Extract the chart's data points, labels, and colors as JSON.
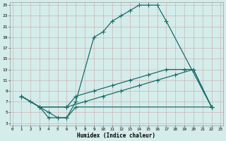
{
  "xlabel": "Humidex (Indice chaleur)",
  "bg_color": "#d4ecea",
  "line_color": "#1a6b6b",
  "grid_color": "#b8d8d8",
  "xlim": [
    -0.3,
    23.3
  ],
  "ylim": [
    2.5,
    25.5
  ],
  "xticks": [
    0,
    1,
    2,
    3,
    4,
    5,
    6,
    7,
    8,
    9,
    10,
    11,
    12,
    13,
    14,
    15,
    16,
    17,
    18,
    19,
    20,
    21,
    22,
    23
  ],
  "yticks": [
    3,
    5,
    7,
    9,
    11,
    13,
    15,
    17,
    19,
    21,
    23,
    25
  ],
  "curve1_x": [
    1,
    2,
    3,
    4,
    5,
    6,
    7,
    9,
    10,
    11,
    12,
    13,
    14,
    15,
    16,
    17,
    22
  ],
  "curve1_y": [
    8,
    7,
    6,
    5,
    4,
    4,
    7,
    19,
    20,
    22,
    23,
    24,
    25,
    25,
    25,
    22,
    6
  ],
  "curve2_x": [
    1,
    3,
    6,
    7,
    9,
    11,
    13,
    15,
    17,
    19,
    20,
    22
  ],
  "curve2_y": [
    8,
    6,
    6,
    8,
    9,
    10,
    11,
    12,
    13,
    13,
    13,
    6
  ],
  "curve3_x": [
    1,
    3,
    6,
    8,
    10,
    12,
    14,
    16,
    18,
    20,
    22
  ],
  "curve3_y": [
    8,
    6,
    6,
    7,
    8,
    9,
    10,
    11,
    12,
    13,
    6
  ],
  "curve4_x": [
    1,
    3,
    4,
    5,
    6,
    7,
    22
  ],
  "curve4_y": [
    8,
    6,
    4,
    4,
    4,
    6,
    6
  ]
}
